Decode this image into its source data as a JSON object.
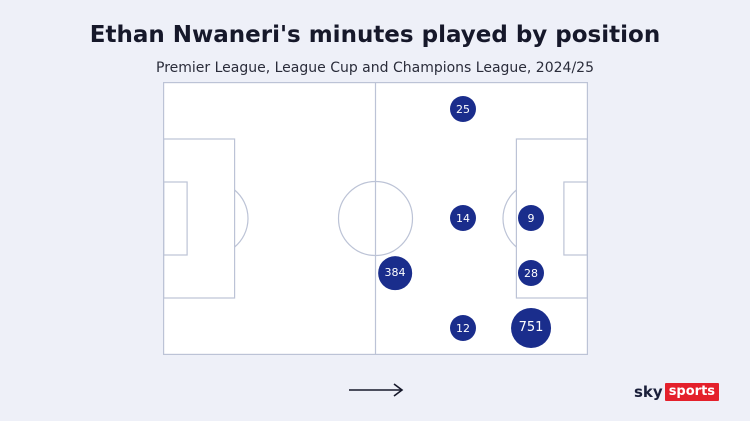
{
  "title": "Ethan Nwaneri's minutes played by position",
  "subtitle": "Premier League, League Cup and Champions League, 2024/25",
  "positions": [
    {
      "label": "25",
      "minutes": 25,
      "row": "left-wing-top",
      "col": "attacking-mid"
    },
    {
      "label": "14",
      "minutes": 14,
      "row": "center",
      "col": "attacking-mid"
    },
    {
      "label": "9",
      "minutes": 9,
      "row": "center",
      "col": "striker"
    },
    {
      "label": "384",
      "minutes": 384,
      "row": "right-center",
      "col": "central-mid"
    },
    {
      "label": "28",
      "minutes": 28,
      "row": "right-center",
      "col": "striker"
    },
    {
      "label": "12",
      "minutes": 12,
      "row": "right-wing",
      "col": "attacking-mid"
    },
    {
      "label": "751",
      "minutes": 751,
      "row": "right-wing",
      "col": "striker"
    }
  ],
  "attack_direction_icon": "arrow-right-icon",
  "logo": {
    "sky": "sky",
    "sports": "sports",
    "accent": "#e4202b"
  },
  "colors": {
    "bubble": "#1a2d8c",
    "background": "#eef0f8",
    "pitch_lines": "#bcc3d6"
  }
}
